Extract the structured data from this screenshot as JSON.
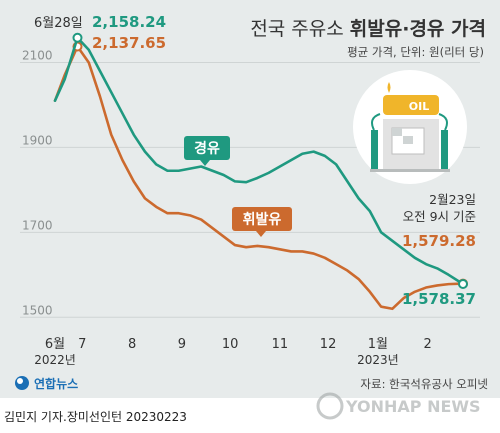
{
  "header": {
    "title_light": "전국 주유소 ",
    "title_bold": "휘발유·경유 가격",
    "subtitle": "평균 가격, 단위: 원(리터 당)"
  },
  "footer": {
    "credit": "김민지 기자.장미선인턴  20230223",
    "source": "자료: 한국석유공사 오피넷",
    "logo_left": "연합뉴스",
    "logo_right": "YONHAP NEWS"
  },
  "icon": {
    "sign_text": "OIL"
  },
  "colors": {
    "diesel": "#1f9980",
    "gasoline": "#cc6a2e",
    "background": "#e7ebeb"
  },
  "chart_data": {
    "type": "line",
    "x_axis": {
      "ticks": [
        "6월",
        "7",
        "8",
        "9",
        "10",
        "11",
        "12",
        "1월",
        "2"
      ],
      "sublabels": {
        "6월": "2022년",
        "1월": "2023년"
      }
    },
    "y_axis": {
      "ticks": [
        1500,
        1700,
        1900,
        2100
      ],
      "range": [
        1470,
        2200
      ]
    },
    "grid": true,
    "series": [
      {
        "name": "경유",
        "color": "#1f9980",
        "x": [
          "6/14",
          "6/20",
          "6/28",
          "7/5",
          "7/12",
          "7/19",
          "7/26",
          "8/2",
          "8/9",
          "8/16",
          "8/23",
          "8/30",
          "9/6",
          "9/13",
          "9/20",
          "9/27",
          "10/4",
          "10/11",
          "10/18",
          "10/25",
          "11/1",
          "11/8",
          "11/15",
          "11/22",
          "11/29",
          "12/6",
          "12/13",
          "12/20",
          "12/27",
          "1/3",
          "1/10",
          "1/17",
          "1/24",
          "1/31",
          "2/7",
          "2/14",
          "2/23"
        ],
        "values": [
          2010,
          2060,
          2158.24,
          2130,
          2080,
          2030,
          1980,
          1930,
          1890,
          1860,
          1845,
          1845,
          1850,
          1855,
          1845,
          1835,
          1820,
          1818,
          1828,
          1840,
          1855,
          1870,
          1885,
          1890,
          1880,
          1860,
          1820,
          1780,
          1750,
          1700,
          1680,
          1660,
          1640,
          1625,
          1615,
          1600,
          1578.37
        ]
      },
      {
        "name": "휘발유",
        "color": "#cc6a2e",
        "x": [
          "6/14",
          "6/20",
          "6/28",
          "7/5",
          "7/12",
          "7/19",
          "7/26",
          "8/2",
          "8/9",
          "8/16",
          "8/23",
          "8/30",
          "9/6",
          "9/13",
          "9/20",
          "9/27",
          "10/4",
          "10/11",
          "10/18",
          "10/25",
          "11/1",
          "11/8",
          "11/15",
          "11/22",
          "11/29",
          "12/6",
          "12/13",
          "12/20",
          "12/27",
          "1/3",
          "1/10",
          "1/17",
          "1/24",
          "1/31",
          "2/7",
          "2/14",
          "2/23"
        ],
        "values": [
          2010,
          2070,
          2137.65,
          2100,
          2020,
          1930,
          1870,
          1820,
          1780,
          1760,
          1745,
          1745,
          1740,
          1730,
          1710,
          1690,
          1670,
          1665,
          1668,
          1665,
          1660,
          1655,
          1655,
          1650,
          1640,
          1625,
          1610,
          1590,
          1560,
          1525,
          1520,
          1545,
          1560,
          1570,
          1575,
          1578,
          1579.28
        ]
      }
    ],
    "annotations": {
      "peak_date": "6월28일",
      "peak_diesel": "2,158.24",
      "peak_gasoline": "2,137.65",
      "end_date_line1": "2월23일",
      "end_date_line2": "오전 9시 기준",
      "end_gasoline": "1,579.28",
      "end_diesel": "1,578.37"
    }
  }
}
